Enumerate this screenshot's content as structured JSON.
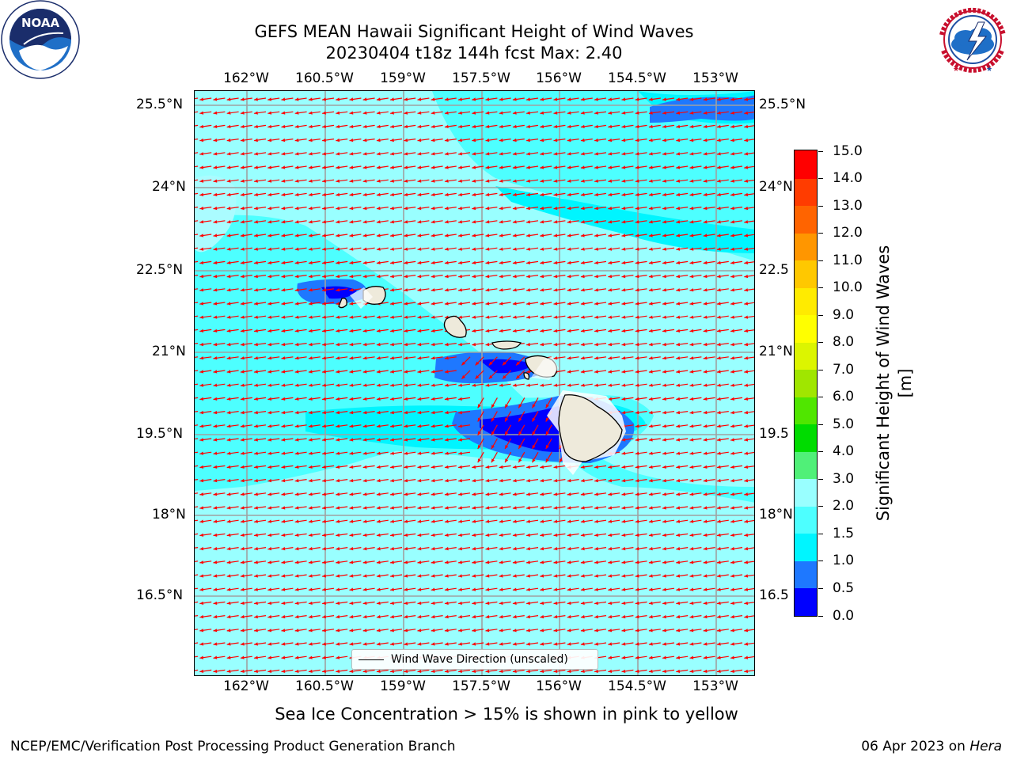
{
  "title": {
    "line1": "GEFS MEAN Hawaii Significant Height of Wind Waves",
    "line2": "20230404 t18z 144h fcst   Max: 2.40"
  },
  "logos": {
    "left": {
      "text": "NOAA",
      "ring_text": "NATIONAL OCEANIC AND ATMOSPHERIC ADMINISTRATION · U.S. DEPARTMENT OF COMMERCE"
    },
    "right": {
      "ring_text": "NATIONAL WEATHER SERVICE"
    }
  },
  "map": {
    "lon_ticks": [
      "162°W",
      "160.5°W",
      "159°W",
      "157.5°W",
      "156°W",
      "154.5°W",
      "153°W"
    ],
    "lat_ticks_left": [
      "25.5°N",
      "24°N",
      "22.5°N",
      "21°N",
      "19.5°N",
      "18°N",
      "16.5°N"
    ],
    "lat_ticks_right": [
      "25.5°N",
      "24°N",
      "22.5",
      "21°N",
      "19.5",
      "18°N",
      "16.5"
    ],
    "lon_range": [
      -163,
      -152.2
    ],
    "lat_range": [
      14.9,
      25.75
    ],
    "ocean_color": "#99ffff",
    "land_color": "#eeeadb",
    "arrow_color": "#ff0000",
    "legend_label": "Wind Wave Direction (unscaled)"
  },
  "colorbar": {
    "label": "Significant Height of Wind Waves [m]",
    "ticks": [
      "0.0",
      "0.5",
      "1.0",
      "1.5",
      "2.0",
      "3.0",
      "4.0",
      "5.0",
      "6.0",
      "7.0",
      "8.0",
      "9.0",
      "10.0",
      "11.0",
      "12.0",
      "13.0",
      "14.0",
      "15.0"
    ],
    "colors": [
      "#0000ff",
      "#1e78ff",
      "#00f5ff",
      "#4dffff",
      "#99ffff",
      "#50f078",
      "#00dc00",
      "#50e600",
      "#a0e600",
      "#dcf500",
      "#ffff00",
      "#ffeb00",
      "#ffc800",
      "#ff9600",
      "#ff6400",
      "#ff3c00",
      "#ff0000"
    ]
  },
  "note": "Sea Ice Concentration > 15% is shown in pink to yellow",
  "footer": {
    "left": "NCEP/EMC/Verification Post Processing Product Generation Branch",
    "date": "06 Apr 2023 on ",
    "host": "Hera"
  }
}
